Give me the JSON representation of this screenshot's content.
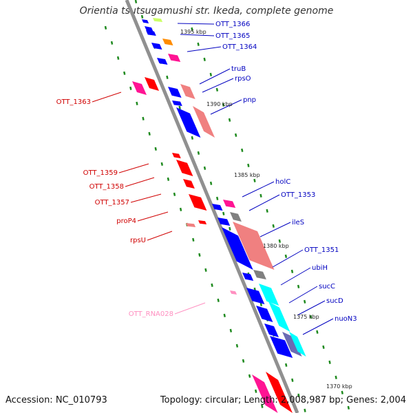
{
  "title": "Orientia tsutsugamushi str. Ikeda, complete genome",
  "footer": {
    "accession": "Accession: NC_010793",
    "summary": "Topology: circular; Length: 2,008,987 bp; Genes: 2,004"
  },
  "colors": {
    "backbone": "#909090",
    "forward_label": "#0000c0",
    "reverse_label": "#d00000",
    "rna_label": "#ff8fc0",
    "tick": "#1f8a1f"
  },
  "kbp_marks": [
    "1395 kbp",
    "1390 kbp",
    "1385 kbp",
    "1380 kbp",
    "1375 kbp",
    "1370 kbp"
  ],
  "forward_genes": [
    "OTT_1366",
    "OTT_1365",
    "OTT_1364",
    "truB",
    "rpsO",
    "pnp",
    "holC",
    "OTT_1353",
    "ileS",
    "OTT_1351",
    "ubiH",
    "sucC",
    "sucD",
    "nuoN3"
  ],
  "reverse_genes": [
    "OTT_1363",
    "OTT_1359",
    "OTT_1358",
    "OTT_1357",
    "proP4",
    "rpsU"
  ],
  "rna_genes": [
    "OTT_RNA028"
  ]
}
